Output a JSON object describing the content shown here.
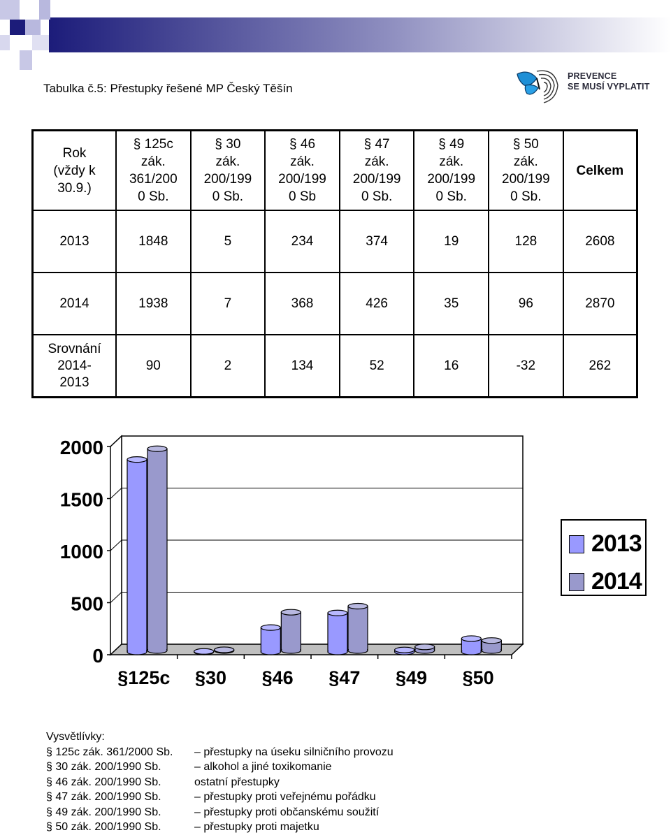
{
  "caption": "Tabulka č.5: Přestupky řešené MP Český Těšín",
  "logo": {
    "line1": "PREVENCE",
    "line2": "SE MUSÍ VYPLATIT"
  },
  "table": {
    "header": [
      "Rok\n(vždy k\n30.9.)",
      "§ 125c\nzák.\n361/200\n0 Sb.",
      "§ 30\nzák.\n200/199\n0 Sb.",
      "§ 46\nzák.\n200/199\n0 Sb",
      "§ 47\nzák.\n200/199\n0 Sb.",
      "§ 49\nzák.\n200/199\n0 Sb.",
      "§ 50\nzák.\n200/199\n0 Sb.",
      "Celkem"
    ],
    "rows": [
      [
        "2013",
        "1848",
        "5",
        "234",
        "374",
        "19",
        "128",
        "2608"
      ],
      [
        "2014",
        "1938",
        "7",
        "368",
        "426",
        "35",
        "96",
        "2870"
      ],
      [
        "Srovnání\n2014-\n2013",
        "90",
        "2",
        "134",
        "52",
        "16",
        "-32",
        "262"
      ]
    ]
  },
  "chart_data": {
    "type": "bar",
    "categories": [
      "§125c",
      "§30",
      "§46",
      "§47",
      "§49",
      "§50"
    ],
    "series": [
      {
        "name": "2013",
        "values": [
          1848,
          5,
          234,
          374,
          19,
          128
        ]
      },
      {
        "name": "2014",
        "values": [
          1938,
          7,
          368,
          426,
          35,
          96
        ]
      }
    ],
    "ylim": [
      0,
      2000
    ],
    "yticks": [
      "0",
      "500",
      "1000",
      "1500",
      "2000"
    ],
    "legend_position": "right",
    "colors": {
      "2013": "#9999ff",
      "2014": "#9999cc"
    }
  },
  "notes": {
    "title": "Vysvětlívky:",
    "items": [
      {
        "key": "§ 125c zák. 361/2000 Sb.",
        "desc": "– přestupky na úseku silničního provozu"
      },
      {
        "key": "§ 30 zák. 200/1990 Sb.",
        "desc": "– alkohol a jiné toxikomanie"
      },
      {
        "key": "§ 46 zák. 200/1990 Sb.",
        "desc": "ostatní přestupky"
      },
      {
        "key": "§ 47 zák. 200/1990 Sb.",
        "desc": "– přestupky proti veřejnému pořádku"
      },
      {
        "key": "§ 49 zák. 200/1990 Sb.",
        "desc": "– přestupky proti občanskému soužití"
      },
      {
        "key": "§ 50 zák. 200/1990 Sb.",
        "desc": "– přestupky proti majetku"
      }
    ]
  }
}
